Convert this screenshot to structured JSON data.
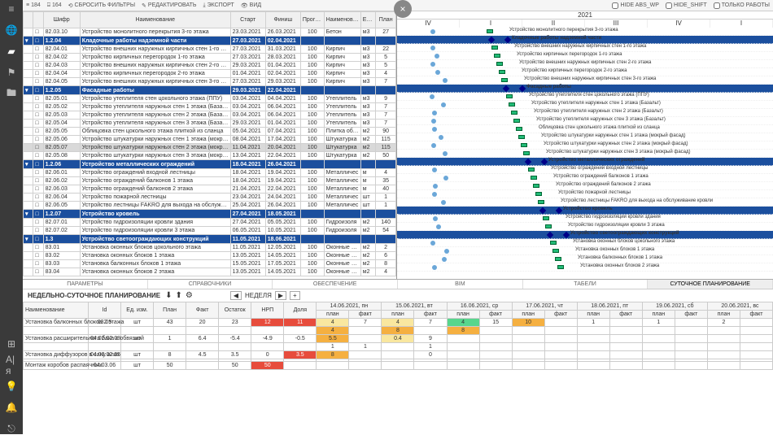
{
  "toolbar": {
    "count1_icon": "≡",
    "count1": "184",
    "count2_icon": "⍈",
    "count2": "164",
    "btn_reset": "СБРОСИТЬ ФИЛЬТРЫ",
    "btn_edit": "РЕДАКТИРОВАТЬ",
    "btn_export": "ЭКСПОРТ",
    "btn_view": "ВИД",
    "cb1": "HIDE ABS_WP",
    "cb2": "HIDE_SHIFT",
    "cb3": "ТОЛЬКО РАБОТЫ"
  },
  "close_label": "×",
  "grid": {
    "headers": [
      "",
      "",
      "Шифр",
      "Наименование",
      "Старт",
      "Финиш",
      "Прогресс",
      "Наименование ФО",
      "Ед. измерения",
      "План"
    ],
    "rows": [
      {
        "g": 0,
        "c": "82.03.10",
        "n": "Устройство монолитного перекрытия 3-го этажа",
        "s": "23.03.2021",
        "f": "26.03.2021",
        "p": "100",
        "fo": "Бетон",
        "u": "м3",
        "pl": "27"
      },
      {
        "g": 1,
        "c": "1.2.04",
        "n": "Кладочные работы надземной части",
        "s": "27.03.2021",
        "f": "02.04.2021"
      },
      {
        "g": 0,
        "c": "82.04.01",
        "n": "Устройство внешних наружных кирпичных стен 1-го этажа",
        "s": "27.03.2021",
        "f": "31.03.2021",
        "p": "100",
        "fo": "Кирпич",
        "u": "м3",
        "pl": "22"
      },
      {
        "g": 0,
        "c": "82.04.02",
        "n": "Устройство кирпичных перегородок 1-го этажа",
        "s": "27.03.2021",
        "f": "28.03.2021",
        "p": "100",
        "fo": "Кирпич",
        "u": "м3",
        "pl": "5"
      },
      {
        "g": 0,
        "c": "82.04.03",
        "n": "Устройство внешних наружных кирпичных стен 2-го этажа",
        "s": "29.03.2021",
        "f": "01.04.2021",
        "p": "100",
        "fo": "Кирпич",
        "u": "м3",
        "pl": "5"
      },
      {
        "g": 0,
        "c": "82.04.04",
        "n": "Устройство кирпичных перегородок 2-го этажа",
        "s": "01.04.2021",
        "f": "02.04.2021",
        "p": "100",
        "fo": "Кирпич",
        "u": "м3",
        "pl": "4"
      },
      {
        "g": 0,
        "c": "82.04.05",
        "n": "Устройство внешних наружных кирпичных стен 3-го этажа",
        "s": "27.03.2021",
        "f": "29.03.2021",
        "p": "100",
        "fo": "Кирпич",
        "u": "м3",
        "pl": "7"
      },
      {
        "g": 1,
        "c": "1.2.05",
        "n": "Фасадные работы",
        "s": "29.03.2021",
        "f": "22.04.2021"
      },
      {
        "g": 0,
        "c": "82.05.01",
        "n": "Устройство утеплителя стен цокольного этажа (ППУ)",
        "s": "03.04.2021",
        "f": "04.04.2021",
        "p": "100",
        "fo": "Утеплитель",
        "u": "м3",
        "pl": "9"
      },
      {
        "g": 0,
        "c": "82.05.02",
        "n": "Устройство утеплителя наружных стен 1 этажа (Базальт)",
        "s": "03.04.2021",
        "f": "06.04.2021",
        "p": "100",
        "fo": "Утеплитель",
        "u": "м3",
        "pl": "7"
      },
      {
        "g": 0,
        "c": "82.05.03",
        "n": "Устройство утеплителя наружных стен 2 этажа (Базальт)",
        "s": "03.04.2021",
        "f": "06.04.2021",
        "p": "100",
        "fo": "Утеплитель",
        "u": "м3",
        "pl": "7"
      },
      {
        "g": 0,
        "c": "82.05.04",
        "n": "Устройство утеплителя наружных стен 3 этажа (Базальт)",
        "s": "29.03.2021",
        "f": "01.04.2021",
        "p": "100",
        "fo": "Утеплитель",
        "u": "м3",
        "pl": "7"
      },
      {
        "g": 0,
        "c": "82.05.05",
        "n": "Облицовка стен цокольного этажа плиткой из сланца",
        "s": "05.04.2021",
        "f": "07.04.2021",
        "p": "100",
        "fo": "Плитка обли",
        "u": "м2",
        "pl": "90"
      },
      {
        "g": 0,
        "c": "82.05.06",
        "n": "Устройство штукатурки наружных стен 1 этажа (мокрый ф.)",
        "s": "08.04.2021",
        "f": "17.04.2021",
        "p": "100",
        "fo": "Штукатурка",
        "u": "м2",
        "pl": "115"
      },
      {
        "g": 0,
        "hl": 1,
        "c": "82.05.07",
        "n": "Устройство штукатурки наружных стен 2 этажа (мокрый ф.)",
        "s": "11.04.2021",
        "f": "20.04.2021",
        "p": "100",
        "fo": "Штукатурка",
        "u": "м2",
        "pl": "115"
      },
      {
        "g": 0,
        "c": "82.05.08",
        "n": "Устройство штукатурки наружных стен 3 этажа (мокрый ф.)",
        "s": "13.04.2021",
        "f": "22.04.2021",
        "p": "100",
        "fo": "Штукатурка",
        "u": "м2",
        "pl": "50"
      },
      {
        "g": 1,
        "c": "1.2.06",
        "n": "Устройство металлических ограждений",
        "s": "18.04.2021",
        "f": "26.04.2021"
      },
      {
        "g": 0,
        "c": "82.06.01",
        "n": "Устройство ограждений входной лестницы",
        "s": "18.04.2021",
        "f": "19.04.2021",
        "p": "100",
        "fo": "Металличес",
        "u": "м",
        "pl": "4"
      },
      {
        "g": 0,
        "c": "82.06.02",
        "n": "Устройство ограждений балконов 1 этажа",
        "s": "18.04.2021",
        "f": "19.04.2021",
        "p": "100",
        "fo": "Металличес",
        "u": "м",
        "pl": "35"
      },
      {
        "g": 0,
        "c": "82.06.03",
        "n": "Устройство ограждений балконов 2 этажа",
        "s": "21.04.2021",
        "f": "22.04.2021",
        "p": "100",
        "fo": "Металличес",
        "u": "м",
        "pl": "40"
      },
      {
        "g": 0,
        "c": "82.06.04",
        "n": "Устройство пожарной лестницы",
        "s": "23.04.2021",
        "f": "24.04.2021",
        "p": "100",
        "fo": "Металличес",
        "u": "шт",
        "pl": "1"
      },
      {
        "g": 0,
        "c": "82.06.05",
        "n": "Устройство лестницы FAKRO для выхода на обслуживание к",
        "s": "25.04.2021",
        "f": "26.04.2021",
        "p": "100",
        "fo": "Металличес",
        "u": "шт",
        "pl": "1"
      },
      {
        "g": 1,
        "c": "1.2.07",
        "n": "Устройство кровель",
        "s": "27.04.2021",
        "f": "18.05.2021"
      },
      {
        "g": 0,
        "c": "82.07.01",
        "n": "Устройство гидроизоляции кровли здания",
        "s": "27.04.2021",
        "f": "05.05.2021",
        "p": "100",
        "fo": "Гидроизоля",
        "u": "м2",
        "pl": "140"
      },
      {
        "g": 0,
        "c": "82.07.02",
        "n": "Устройство гидроизоляции кровли 3 этажа",
        "s": "06.05.2021",
        "f": "10.05.2021",
        "p": "100",
        "fo": "Гидроизоля",
        "u": "м2",
        "pl": "54"
      },
      {
        "g": 1,
        "c": "1.3",
        "n": "Устройство светоограждающих конструкций",
        "s": "11.05.2021",
        "f": "18.06.2021"
      },
      {
        "g": 0,
        "c": "83.01",
        "n": "Установка оконных блоков цокольного этажа",
        "s": "11.05.2021",
        "f": "12.05.2021",
        "p": "100",
        "fo": "Оконные бло",
        "u": "м2",
        "pl": "2"
      },
      {
        "g": 0,
        "c": "83.02",
        "n": "Установка оконных блоков 1 этажа",
        "s": "13.05.2021",
        "f": "14.05.2021",
        "p": "100",
        "fo": "Оконные бло",
        "u": "м2",
        "pl": "6"
      },
      {
        "g": 0,
        "c": "83.03",
        "n": "Установка балконных блоков 1 этажа",
        "s": "15.05.2021",
        "f": "17.05.2021",
        "p": "100",
        "fo": "Оконные бло",
        "u": "м2",
        "pl": "8"
      },
      {
        "g": 0,
        "c": "83.04",
        "n": "Установка оконных блоков 2 этажа",
        "s": "13.05.2021",
        "f": "14.05.2021",
        "p": "100",
        "fo": "Оконные бло",
        "u": "м2",
        "pl": "4"
      }
    ]
  },
  "gantt": {
    "year": "2021",
    "months": [
      "IV",
      "I",
      "II",
      "III",
      "IV",
      "I"
    ],
    "labels": [
      "Устройство монолитного перекрытия 3-го этажа",
      "Кладочные работы надземной части",
      "Устройство внешних наружных кирпичных стен 1-го этажа",
      "Устройство кирпичных перегородок 1-го этажа",
      "Устройство внешних наружных кирпичных стен 2-го этажа",
      "Устройство кирпичных перегородок 2-го этажа",
      "Устройство внешних наружных кирпичных стен 3-го этажа",
      "Фасадные работы",
      "Устройство утеплителя стен цокольного этажа (ППУ)",
      "Устройство утеплителя наружных стен 1 этажа (Базальт)",
      "Устройство утеплителя наружных стен 2 этажа (Базальт)",
      "Устройство утеплителя наружных стен 3 этажа (Базальт)",
      "Облицовка стен цокольного этажа плиткой из сланца",
      "Устройство штукатурки наружных стен 1 этажа (мокрый фасад)",
      "Устройство штукатурки наружных стен 2 этажа (мокрый фасад)",
      "Устройство штукатурки наружных стен 3 этажа (мокрый фасад)",
      "Устройство металлических ограждений",
      "Устройство ограждений входной лестницы",
      "Устройство ограждений балконов 1 этажа",
      "Устройство ограждений балконов 2 этажа",
      "Устройство пожарной лестницы",
      "Устройство лестницы FAKRO для выхода на обслуживание кровли",
      "Устройство кровель",
      "Устройство гидроизоляции кровли здания",
      "Устройство гидроизоляции кровли 3 этажа",
      "Устройство светоограждающих конструкций",
      "Установка оконных блоков цокольного этажа",
      "Установка оконных блоков 1 этажа",
      "Установка балконных блоков 1 этажа",
      "Установка оконных блоков 2 этажа"
    ]
  },
  "bottom_tabs": [
    "ПАРАМЕТРЫ",
    "СПРАВОЧНИКИ",
    "ОБЕСПЕЧЕНИЕ",
    "BIM",
    "ТАБЕЛИ",
    "СУТОЧНОЕ ПЛАНИРОВАНИЕ"
  ],
  "plan": {
    "title": "НЕДЕЛЬНО-СУТОЧНОЕ ПЛАНИРОВАНИЕ",
    "week_label": "НЕДЕЛЯ",
    "days": [
      "14.06.2021, пн",
      "15.06.2021, вт",
      "16.06.2021, ср",
      "17.06.2021, чт",
      "18.06.2021, пт",
      "19.06.2021, сб",
      "20.06.2021, вс"
    ],
    "sub": [
      "план",
      "факт"
    ],
    "cols": [
      "Наименование",
      "Id",
      "Ед. изм.",
      "План",
      "Факт",
      "Остаток",
      "НРП",
      "Доля"
    ],
    "rows": [
      {
        "n": "Установка балконных блоков 2 этажа",
        "id": "03.05",
        "u": "шт",
        "pl": "43",
        "f": "20",
        "o": "23",
        "nrp": "12",
        "nrp_c": "c-red",
        "d": "11",
        "d_c": "c-red",
        "cells": [
          [
            "4",
            "7",
            "c-yel"
          ],
          [
            "4",
            "7",
            "c-yel"
          ],
          [
            "4",
            "15",
            "c-grn"
          ],
          [
            "10",
            "",
            "c-org"
          ],
          [
            "1",
            "",
            ""
          ],
          [
            "1",
            "",
            ""
          ],
          [
            "2",
            "",
            ""
          ]
        ]
      },
      {
        "sum": 1,
        "cells": [
          [
            "4",
            "",
            "c-org"
          ],
          [
            "8",
            "",
            "c-org"
          ],
          [
            "8",
            "",
            "c-org"
          ],
          [
            "",
            "",
            ""
          ],
          [
            "",
            "",
            ""
          ],
          [
            "",
            "",
            ""
          ],
          [
            "",
            "",
            ""
          ]
        ]
      },
      {
        "n": "Установка расширительного бака с обвязкой",
        "id": "04.02.02.08",
        "u": "шт",
        "pl": "1",
        "f": "6.4",
        "o": "-5.4",
        "nrp": "-4.9",
        "d": "-0.5",
        "cells": [
          [
            "5.5",
            "",
            "c-org"
          ],
          [
            "0.4",
            "9",
            "c-yel"
          ],
          [
            "",
            "",
            ""
          ],
          [
            "",
            "",
            ""
          ],
          [
            "",
            "",
            ""
          ],
          [
            "",
            "",
            ""
          ],
          [
            "",
            "",
            ""
          ]
        ]
      },
      {
        "sum": 1,
        "cells": [
          [
            "1",
            "1",
            ""
          ],
          [
            "",
            "1",
            ""
          ],
          [
            "",
            "",
            ""
          ],
          [
            "",
            "",
            ""
          ],
          [
            "",
            "",
            ""
          ],
          [
            "",
            "",
            ""
          ],
          [
            "",
            "",
            ""
          ]
        ]
      },
      {
        "n": "Установка диффузоров в сану алах",
        "id": "04.02.02.05",
        "u": "шт",
        "pl": "8",
        "f": "4.5",
        "o": "3.5",
        "nrp": "0",
        "d": "3.5",
        "d_c": "c-red",
        "cells": [
          [
            "8",
            "",
            "c-org"
          ],
          [
            "",
            "0",
            ""
          ],
          [
            "",
            "",
            ""
          ],
          [
            "",
            "",
            ""
          ],
          [
            "",
            "",
            ""
          ],
          [
            "",
            "",
            ""
          ],
          [
            "",
            "",
            ""
          ]
        ]
      },
      {
        "sum": 1,
        "cells": [
          [
            "",
            "",
            ""
          ],
          [
            "",
            "",
            ""
          ],
          [
            "",
            "",
            ""
          ],
          [
            "",
            "",
            ""
          ],
          [
            "",
            "",
            ""
          ],
          [
            "",
            "",
            ""
          ],
          [
            "",
            "",
            ""
          ]
        ]
      },
      {
        "n": "Монтаж коробов распаячных",
        "id": "04.03.06",
        "u": "шт",
        "pl": "50",
        "f": "",
        "o": "50",
        "nrp": "50",
        "nrp_c": "c-red",
        "d": "",
        "cells": [
          [
            "",
            "",
            ""
          ],
          [
            "",
            "",
            ""
          ],
          [
            "",
            "",
            ""
          ],
          [
            "",
            "",
            ""
          ],
          [
            "",
            "",
            ""
          ],
          [
            "",
            "",
            ""
          ],
          [
            "",
            "",
            ""
          ]
        ]
      }
    ]
  }
}
